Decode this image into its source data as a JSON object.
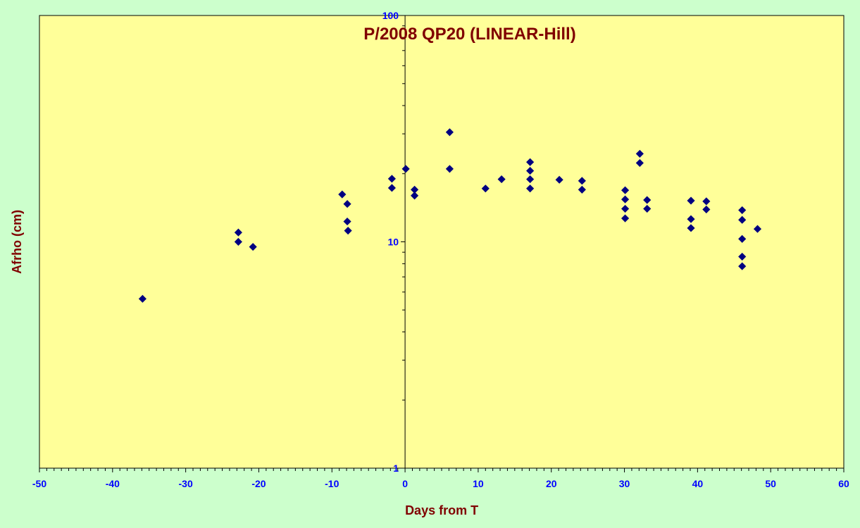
{
  "colors": {
    "page_background": "#ccffcc",
    "plot_background": "#ffff99",
    "marker": "#000080",
    "title": "#800000",
    "tick_labels": "#0000ff"
  },
  "chart_data": {
    "type": "scatter",
    "title": "P/2008 QP20 (LINEAR-Hill)",
    "xlabel": "Days from T",
    "ylabel": "Afrho (cm)",
    "xlim": [
      -50,
      60
    ],
    "ylim": [
      1,
      100
    ],
    "yscale": "log",
    "grid": false,
    "legend": "none",
    "marker": "diamond",
    "x_ticks": [
      "-50",
      "-40",
      "-30",
      "-20",
      "-10",
      "0",
      "10",
      "20",
      "30",
      "40",
      "50",
      "60"
    ],
    "y_ticks": [
      "1",
      "10",
      "100"
    ],
    "points": [
      {
        "x": -35.9,
        "y": 5.6
      },
      {
        "x": -22.8,
        "y": 11.0
      },
      {
        "x": -22.8,
        "y": 10.0
      },
      {
        "x": -20.8,
        "y": 9.5
      },
      {
        "x": -8.6,
        "y": 16.2
      },
      {
        "x": -7.9,
        "y": 14.7
      },
      {
        "x": -7.9,
        "y": 12.3
      },
      {
        "x": -7.8,
        "y": 11.2
      },
      {
        "x": -1.8,
        "y": 19.0
      },
      {
        "x": -1.8,
        "y": 17.3
      },
      {
        "x": 0.1,
        "y": 21.0
      },
      {
        "x": 1.3,
        "y": 17.0
      },
      {
        "x": 1.3,
        "y": 16.0
      },
      {
        "x": 6.1,
        "y": 30.5
      },
      {
        "x": 6.1,
        "y": 21.0
      },
      {
        "x": 11.0,
        "y": 17.2
      },
      {
        "x": 13.2,
        "y": 18.9
      },
      {
        "x": 17.1,
        "y": 22.5
      },
      {
        "x": 17.1,
        "y": 20.6
      },
      {
        "x": 17.1,
        "y": 18.9
      },
      {
        "x": 17.1,
        "y": 17.2
      },
      {
        "x": 21.1,
        "y": 18.8
      },
      {
        "x": 24.2,
        "y": 18.6
      },
      {
        "x": 24.2,
        "y": 17.0
      },
      {
        "x": 30.1,
        "y": 16.9
      },
      {
        "x": 30.1,
        "y": 15.4
      },
      {
        "x": 30.1,
        "y": 14.0
      },
      {
        "x": 30.1,
        "y": 12.7
      },
      {
        "x": 32.1,
        "y": 24.5
      },
      {
        "x": 32.1,
        "y": 22.3
      },
      {
        "x": 33.1,
        "y": 15.3
      },
      {
        "x": 33.1,
        "y": 14.0
      },
      {
        "x": 39.1,
        "y": 15.2
      },
      {
        "x": 39.1,
        "y": 12.6
      },
      {
        "x": 39.1,
        "y": 11.5
      },
      {
        "x": 41.2,
        "y": 15.1
      },
      {
        "x": 41.2,
        "y": 13.9
      },
      {
        "x": 46.1,
        "y": 13.8
      },
      {
        "x": 46.1,
        "y": 12.5
      },
      {
        "x": 46.1,
        "y": 10.3
      },
      {
        "x": 46.1,
        "y": 8.6
      },
      {
        "x": 46.1,
        "y": 7.8
      },
      {
        "x": 48.2,
        "y": 11.4
      }
    ]
  }
}
